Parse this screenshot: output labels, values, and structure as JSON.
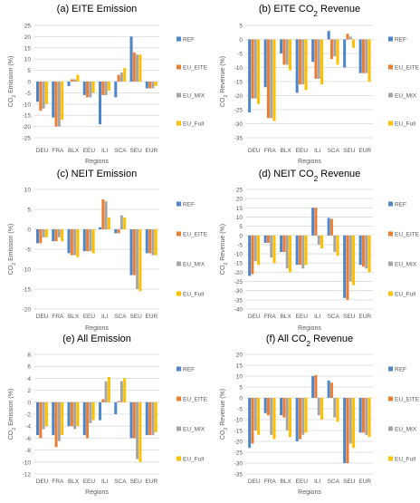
{
  "colors": {
    "REF": "#4a86c8",
    "EU_EITE": "#ed7d31",
    "EU_MIX": "#a5a5a5",
    "EU_Full": "#ffc000",
    "grid": "#d9d9d9",
    "text": "#595959",
    "title": "#000000"
  },
  "chart_data": [
    {
      "type": "bar",
      "title": "(a) EITE Emission",
      "ylabel": "CO2 Emission (%)",
      "xlabel": "Regions",
      "categories": [
        "DEU",
        "FRA",
        "BLX",
        "EEU",
        "ILI",
        "SCA",
        "SEU",
        "EUR"
      ],
      "ylim": [
        -25,
        25
      ],
      "yticks": [
        -25,
        -20,
        -15,
        -10,
        -5,
        0,
        5,
        10,
        15,
        20,
        25
      ],
      "grid": true,
      "legend": "right",
      "series": [
        {
          "name": "REF",
          "values": [
            -9,
            -16,
            -2,
            -6,
            -19,
            -7,
            20,
            -3
          ]
        },
        {
          "name": "EU_EITE",
          "values": [
            -13,
            -20,
            1,
            -7,
            -6,
            3,
            13,
            -3
          ]
        },
        {
          "name": "EU_MIX",
          "values": [
            -12,
            -20,
            1,
            -7,
            -6,
            4,
            12,
            -3
          ]
        },
        {
          "name": "EU_Full",
          "values": [
            -10,
            -17,
            3,
            -5,
            -4,
            6,
            12,
            -2
          ]
        }
      ]
    },
    {
      "type": "bar",
      "title": "(b) EITE CO2 Revenue",
      "ylabel": "CO2 Revenue (%)",
      "xlabel": "Regions",
      "categories": [
        "DEU",
        "FRA",
        "BLX",
        "EEU",
        "ILI",
        "SCA",
        "SEU",
        "EUR"
      ],
      "ylim": [
        -35,
        5
      ],
      "yticks": [
        -35,
        -30,
        -25,
        -20,
        -15,
        -10,
        -5,
        0,
        5
      ],
      "grid": true,
      "legend": "right",
      "series": [
        {
          "name": "REF",
          "values": [
            -26,
            -17,
            -5,
            -19,
            -8,
            3,
            -10,
            -12
          ]
        },
        {
          "name": "EU_EITE",
          "values": [
            -21,
            -28,
            -9,
            -16,
            -14,
            -7,
            2,
            -12
          ]
        },
        {
          "name": "EU_MIX",
          "values": [
            -21,
            -28,
            -9,
            -16,
            -14,
            -6,
            1,
            -12
          ]
        },
        {
          "name": "EU_Full",
          "values": [
            -23,
            -29,
            -11,
            -18,
            -16,
            -9,
            -3,
            -15
          ]
        }
      ]
    },
    {
      "type": "bar",
      "title": "(c) NEIT Emission",
      "ylabel": "CO2 Emission (%)",
      "xlabel": "Regions",
      "categories": [
        "DEU",
        "FRA",
        "BLX",
        "EEU",
        "ILI",
        "SCA",
        "SEU",
        "EUR"
      ],
      "ylim": [
        -20,
        10
      ],
      "yticks": [
        -20,
        -15,
        -10,
        -5,
        0,
        5,
        10
      ],
      "grid": true,
      "legend": "right",
      "series": [
        {
          "name": "REF",
          "values": [
            -3.5,
            -3,
            -6,
            -5.5,
            0.5,
            -1,
            -11.5,
            -6
          ]
        },
        {
          "name": "EU_EITE",
          "values": [
            -3.5,
            -3,
            -6.5,
            -5.5,
            7.5,
            -1,
            -11.5,
            -6
          ]
        },
        {
          "name": "EU_MIX",
          "values": [
            -2,
            -2,
            -6.5,
            -5.5,
            7,
            3.5,
            -15,
            -6.5
          ]
        },
        {
          "name": "EU_Full",
          "values": [
            -2,
            -3,
            -7,
            -6,
            3,
            3,
            -15.5,
            -6.5
          ]
        }
      ]
    },
    {
      "type": "bar",
      "title": "(d) NEIT CO2 Revenue",
      "ylabel": "CO2 Revenue (%)",
      "xlabel": "Regions",
      "categories": [
        "DEU",
        "FRA",
        "BLX",
        "EEU",
        "ILI",
        "SCA",
        "SEU",
        "EUR"
      ],
      "ylim": [
        -40,
        25
      ],
      "yticks": [
        -40,
        -35,
        -30,
        -25,
        -20,
        -15,
        -10,
        -5,
        0,
        5,
        10,
        15,
        20,
        25
      ],
      "grid": true,
      "legend": "right",
      "series": [
        {
          "name": "REF",
          "values": [
            -22,
            -4,
            -9,
            -16,
            15,
            9.5,
            -34,
            -16
          ]
        },
        {
          "name": "EU_EITE",
          "values": [
            -21,
            -4,
            -9,
            -16,
            15,
            9,
            -35,
            -17
          ]
        },
        {
          "name": "EU_MIX",
          "values": [
            -14,
            -12,
            -18,
            -18,
            -5,
            -9,
            -25,
            -18
          ]
        },
        {
          "name": "EU_Full",
          "values": [
            -16,
            -15,
            -20,
            -16,
            -7,
            -11,
            -27,
            -20
          ]
        }
      ]
    },
    {
      "type": "bar",
      "title": "(e) All Emission",
      "ylabel": "CO2 Emission (%)",
      "xlabel": "Regions",
      "categories": [
        "DEU",
        "FRA",
        "BLX",
        "EEU",
        "ILI",
        "SCA",
        "SEU",
        "EUR"
      ],
      "ylim": [
        -12,
        8
      ],
      "yticks": [
        -12,
        -10,
        -8,
        -6,
        -4,
        -2,
        0,
        2,
        4,
        6,
        8
      ],
      "grid": true,
      "legend": "right",
      "series": [
        {
          "name": "REF",
          "values": [
            -5.5,
            -5.5,
            -4,
            -5.5,
            -3,
            -2,
            -6,
            -5.5
          ]
        },
        {
          "name": "EU_EITE",
          "values": [
            -6,
            -7.5,
            -4,
            -6,
            0.5,
            0.2,
            -6,
            -5.5
          ]
        },
        {
          "name": "EU_MIX",
          "values": [
            -4.5,
            -6.5,
            -4.5,
            -3.5,
            3.5,
            3.5,
            -9.5,
            -5.5
          ]
        },
        {
          "name": "EU_Full",
          "values": [
            -4,
            -5.5,
            -4,
            -3,
            4.2,
            4,
            -10,
            -5
          ]
        }
      ]
    },
    {
      "type": "bar",
      "title": "(f) All CO2 Revenue",
      "ylabel": "CO2 Revenue (%)",
      "xlabel": "Regions",
      "categories": [
        "DEU",
        "FRA",
        "BLX",
        "EEU",
        "ILI",
        "SCA",
        "SEU",
        "EUR"
      ],
      "ylim": [
        -35,
        20
      ],
      "yticks": [
        -35,
        -30,
        -25,
        -20,
        -15,
        -10,
        -5,
        0,
        5,
        10,
        15,
        20
      ],
      "grid": true,
      "legend": "right",
      "series": [
        {
          "name": "REF",
          "values": [
            -23,
            -7,
            -8,
            -20,
            10,
            8,
            -30,
            -16
          ]
        },
        {
          "name": "EU_EITE",
          "values": [
            -21,
            -8,
            -9,
            -19,
            10.5,
            7,
            -30,
            -16
          ]
        },
        {
          "name": "EU_MIX",
          "values": [
            -15,
            -17,
            -15,
            -17,
            -8,
            -9,
            -21,
            -17
          ]
        },
        {
          "name": "EU_Full",
          "values": [
            -17,
            -19,
            -18,
            -16,
            -10,
            -11,
            -23,
            -18
          ]
        }
      ]
    }
  ]
}
